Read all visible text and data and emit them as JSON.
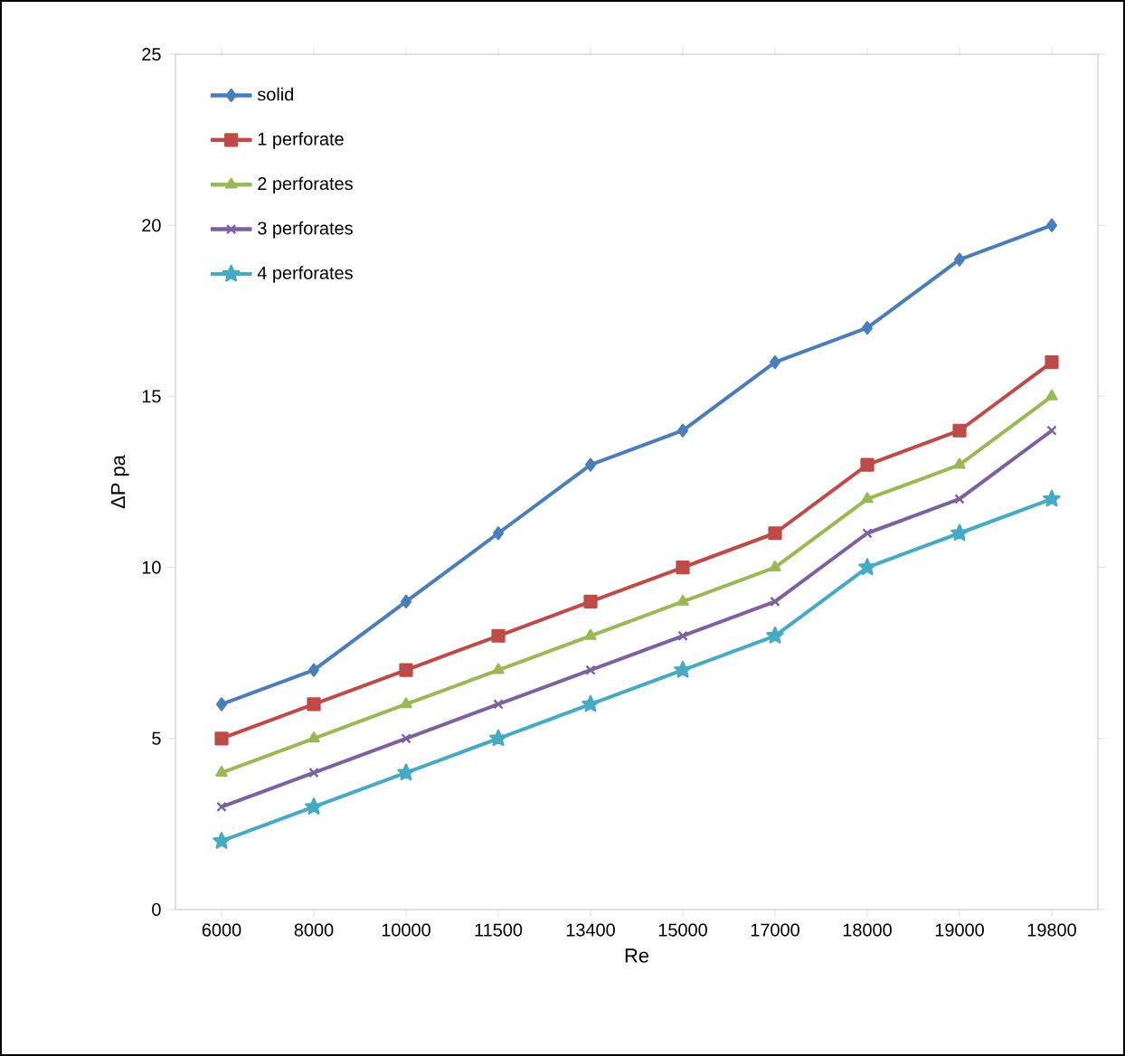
{
  "chart_data": {
    "type": "line",
    "xlabel": "Re",
    "ylabel": "ΔP pa",
    "categories": [
      "6000",
      "8000",
      "10000",
      "11500",
      "13400",
      "15000",
      "17000",
      "18000",
      "19000",
      "19800"
    ],
    "ylim": [
      0,
      25
    ],
    "yticks": [
      0,
      5,
      10,
      15,
      20,
      25
    ],
    "grid": false,
    "legend": "top left",
    "series": [
      {
        "name": "solid",
        "color": "#4a7ebb",
        "marker": "diamond",
        "values": [
          6,
          7,
          9,
          11,
          13,
          14,
          16,
          17,
          19,
          20
        ]
      },
      {
        "name": "1 perforate",
        "color": "#be4b48",
        "marker": "square",
        "values": [
          5,
          6,
          7,
          8,
          9,
          10,
          11,
          13,
          14,
          16
        ]
      },
      {
        "name": "2 perforates",
        "color": "#98b954",
        "marker": "triangle",
        "values": [
          4,
          5,
          6,
          7,
          8,
          9,
          10,
          12,
          13,
          15
        ]
      },
      {
        "name": "3 perforates",
        "color": "#7d60a0",
        "marker": "cross",
        "values": [
          3,
          4,
          5,
          6,
          7,
          8,
          9,
          11,
          12,
          14
        ]
      },
      {
        "name": "4 perforates",
        "color": "#46aac5",
        "marker": "star",
        "values": [
          2,
          3,
          4,
          5,
          6,
          7,
          8,
          10,
          11,
          12
        ]
      }
    ]
  }
}
